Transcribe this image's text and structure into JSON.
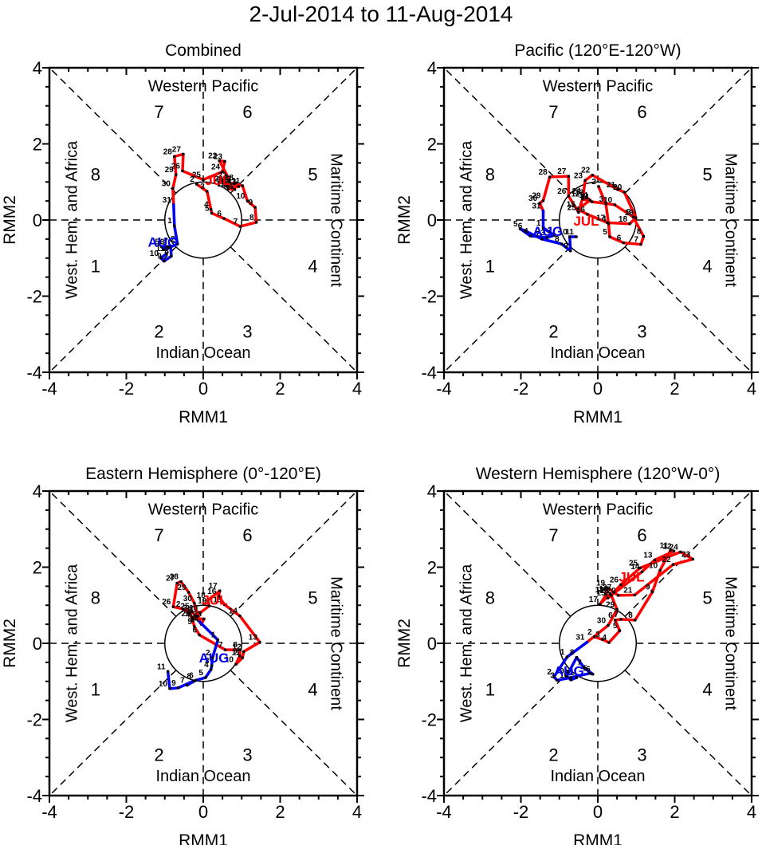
{
  "page_title": "2-Jul-2014 to 11-Aug-2014",
  "colors": {
    "july": "#ff0000",
    "august": "#0000ee",
    "axis": "#000000"
  },
  "phase_space": {
    "xlabel": "RMM1",
    "ylabel": "RMM2",
    "xlim": [
      -4,
      4
    ],
    "ylim": [
      -4,
      4
    ],
    "major_ticks": [
      -4,
      -2,
      0,
      2,
      4
    ],
    "minor_tick_step": 0.5,
    "unit_circle_radius": 1,
    "regions": {
      "top": "Western Pacific",
      "bottom": "Indian Ocean",
      "left": "West. Hem. and Africa",
      "right": "Maritime Continent"
    },
    "phases": [
      [
        "1",
        -2.8,
        -1.2
      ],
      [
        "2",
        -1.15,
        -2.92
      ],
      [
        "3",
        1.15,
        -2.92
      ],
      [
        "4",
        2.85,
        -1.2
      ],
      [
        "5",
        2.85,
        1.2
      ],
      [
        "6",
        1.15,
        2.85
      ],
      [
        "7",
        -1.15,
        2.85
      ],
      [
        "8",
        -2.8,
        1.2
      ]
    ]
  },
  "chart_data": [
    {
      "type": "line",
      "title": "Combined",
      "xlabel": "RMM1",
      "ylabel": "RMM2",
      "xlim": [
        -4,
        4
      ],
      "ylim": [
        -4,
        4
      ],
      "series": [
        {
          "name": "JUL",
          "color_key": "july",
          "label_pos": [
            0.38,
            0.92
          ],
          "days": [
            [
              2,
              -0.17,
              0.94
            ],
            [
              3,
              0.1,
              0.75
            ],
            [
              4,
              0.2,
              0.28
            ],
            [
              5,
              0.22,
              0.18
            ],
            [
              6,
              0.54,
              0.04
            ],
            [
              7,
              0.96,
              -0.17
            ],
            [
              8,
              1.38,
              -0.06
            ],
            [
              9,
              1.35,
              0.33
            ],
            [
              10,
              1.15,
              0.5
            ],
            [
              11,
              1.02,
              0.9
            ],
            [
              12,
              0.8,
              0.95
            ],
            [
              13,
              0.92,
              0.88
            ],
            [
              14,
              0.75,
              0.85
            ],
            [
              15,
              0.65,
              0.82
            ],
            [
              16,
              0.82,
              0.8
            ],
            [
              17,
              0.7,
              0.95
            ],
            [
              18,
              0.85,
              0.98
            ],
            [
              19,
              0.62,
              0.88
            ],
            [
              20,
              0.58,
              0.95
            ],
            [
              21,
              0.68,
              1.05
            ],
            [
              22,
              0.42,
              1.56
            ],
            [
              23,
              0.56,
              1.54
            ],
            [
              24,
              0.5,
              1.27
            ],
            [
              25,
              0.0,
              1.06
            ],
            [
              26,
              -0.54,
              1.29
            ],
            [
              27,
              -0.52,
              1.73
            ],
            [
              28,
              -0.75,
              1.67
            ],
            [
              29,
              -0.71,
              1.19
            ],
            [
              30,
              -0.79,
              0.83
            ],
            [
              31,
              -0.77,
              0.4
            ]
          ]
        },
        {
          "name": "AUG",
          "color_key": "august",
          "label_pos": [
            -1.05,
            -0.7
          ],
          "days": [
            [
              1,
              -0.75,
              -0.15
            ],
            [
              2,
              -0.67,
              -0.63
            ],
            [
              3,
              -0.88,
              -0.72
            ],
            [
              4,
              -1.02,
              -0.78
            ],
            [
              5,
              -1.08,
              -0.7
            ],
            [
              6,
              -0.95,
              -0.7
            ],
            [
              7,
              -0.85,
              -0.68
            ],
            [
              8,
              -0.83,
              -0.95
            ],
            [
              9,
              -1.02,
              -1.08
            ],
            [
              10,
              -1.1,
              -1.0
            ],
            [
              11,
              -0.95,
              -0.88
            ]
          ]
        }
      ]
    },
    {
      "type": "line",
      "title": "Pacific (120°E-120°W)",
      "xlabel": "RMM1",
      "ylabel": "RMM2",
      "xlim": [
        -4,
        4
      ],
      "ylim": [
        -4,
        4
      ],
      "series": [
        {
          "name": "JUL",
          "color_key": "july",
          "label_pos": [
            -0.3,
            -0.15
          ],
          "days": [
            [
              2,
              0.02,
              0.88
            ],
            [
              3,
              0.21,
              0.42
            ],
            [
              4,
              0.28,
              -0.1
            ],
            [
              5,
              0.31,
              -0.44
            ],
            [
              6,
              0.67,
              -0.6
            ],
            [
              7,
              1.12,
              -0.64
            ],
            [
              8,
              1.19,
              -0.43
            ],
            [
              9,
              0.92,
              0.08
            ],
            [
              10,
              0.44,
              0.4
            ],
            [
              11,
              -0.15,
              0.48
            ],
            [
              12,
              -0.4,
              0.55
            ],
            [
              13,
              -0.3,
              0.6
            ],
            [
              14,
              -0.2,
              0.52
            ],
            [
              15,
              -0.52,
              0.28
            ],
            [
              16,
              -0.27,
              0.15
            ],
            [
              17,
              0.25,
              -0.07
            ],
            [
              18,
              0.83,
              -0.1
            ],
            [
              19,
              0.99,
              0.06
            ],
            [
              20,
              0.69,
              0.73
            ],
            [
              21,
              0.52,
              0.8
            ],
            [
              22,
              -0.14,
              1.18
            ],
            [
              23,
              -0.33,
              1.04
            ],
            [
              24,
              -0.38,
              0.63
            ],
            [
              25,
              -0.5,
              0.2
            ],
            [
              26,
              -0.76,
              0.63
            ],
            [
              27,
              -0.76,
              1.15
            ],
            [
              28,
              -1.25,
              1.13
            ],
            [
              29,
              -1.42,
              0.51
            ],
            [
              30,
              -1.51,
              0.44
            ],
            [
              31,
              -1.42,
              0.24
            ]
          ]
        },
        {
          "name": "AUG",
          "color_key": "august",
          "label_pos": [
            -1.3,
            -0.42
          ],
          "days": [
            [
              1,
              -1.42,
              -0.21
            ],
            [
              2,
              -1.13,
              -0.4
            ],
            [
              3,
              -1.31,
              -0.46
            ],
            [
              4,
              -1.75,
              -0.42
            ],
            [
              5,
              -2.02,
              -0.23
            ],
            [
              6,
              -1.9,
              -0.28
            ],
            [
              7,
              -1.45,
              -0.5
            ],
            [
              8,
              -0.94,
              -0.63
            ],
            [
              9,
              -0.71,
              -0.81
            ],
            [
              10,
              -0.73,
              -0.44
            ],
            [
              11,
              -0.56,
              -0.44
            ]
          ]
        }
      ]
    },
    {
      "type": "line",
      "title": "Eastern Hemisphere (0°-120°E)",
      "xlabel": "RMM1",
      "ylabel": "RMM2",
      "xlim": [
        -4,
        4
      ],
      "ylim": [
        -4,
        4
      ],
      "series": [
        {
          "name": "JUL",
          "color_key": "july",
          "label_pos": [
            0.3,
            1.02
          ],
          "days": [
            [
              2,
              -0.53,
              0.9
            ],
            [
              3,
              -0.35,
              0.8
            ],
            [
              4,
              -0.28,
              0.62
            ],
            [
              5,
              -0.23,
              0.44
            ],
            [
              6,
              -0.1,
              0.22
            ],
            [
              7,
              0.57,
              -0.17
            ],
            [
              8,
              0.95,
              -0.17
            ],
            [
              9,
              0.95,
              -0.33
            ],
            [
              10,
              0.85,
              -0.55
            ],
            [
              11,
              1.02,
              -0.38
            ],
            [
              12,
              1.05,
              -0.22
            ],
            [
              13,
              1.47,
              0.03
            ],
            [
              14,
              0.95,
              0.72
            ],
            [
              15,
              0.55,
              1.02
            ],
            [
              16,
              0.4,
              1.24
            ],
            [
              17,
              0.43,
              1.38
            ],
            [
              18,
              0.12,
              1.13
            ],
            [
              19,
              0.15,
              0.98
            ],
            [
              20,
              -0.08,
              0.8
            ],
            [
              21,
              -0.18,
              0.72
            ],
            [
              22,
              -0.28,
              0.65
            ],
            [
              23,
              0.02,
              0.64
            ],
            [
              24,
              -0.05,
              0.5
            ],
            [
              25,
              -0.3,
              0.85
            ],
            [
              26,
              -0.78,
              0.96
            ],
            [
              27,
              -0.68,
              1.58
            ],
            [
              28,
              -0.58,
              1.62
            ],
            [
              29,
              -0.38,
              1.34
            ],
            [
              30,
              -0.23,
              1.05
            ],
            [
              31,
              -0.09,
              0.56
            ]
          ]
        },
        {
          "name": "AUG",
          "color_key": "august",
          "label_pos": [
            0.28,
            -0.5
          ],
          "days": [
            [
              1,
              0.38,
              0.09
            ],
            [
              2,
              0.24,
              -0.38
            ],
            [
              3,
              0.22,
              -0.59
            ],
            [
              4,
              0.2,
              -0.69
            ],
            [
              5,
              0.06,
              -0.9
            ],
            [
              6,
              -0.19,
              -0.97
            ],
            [
              7,
              -0.42,
              -1.1
            ],
            [
              8,
              -0.25,
              -0.99
            ],
            [
              9,
              -0.65,
              -1.17
            ],
            [
              10,
              -0.87,
              -1.19
            ],
            [
              11,
              -0.92,
              -0.74
            ]
          ]
        }
      ]
    },
    {
      "type": "line",
      "title": "Western Hemisphere (120°W-0°)",
      "xlabel": "RMM1",
      "ylabel": "RMM2",
      "xlim": [
        -4,
        4
      ],
      "ylim": [
        -4,
        4
      ],
      "series": [
        {
          "name": "JUL",
          "color_key": "july",
          "label_pos": [
            0.88,
            1.62
          ],
          "days": [
            [
              2,
              -0.09,
              0.17
            ],
            [
              3,
              0.12,
              0.1
            ],
            [
              4,
              0.29,
              0.02
            ],
            [
              5,
              0.57,
              0.33
            ],
            [
              6,
              0.45,
              0.61
            ],
            [
              7,
              0.6,
              0.63
            ],
            [
              8,
              0.97,
              0.61
            ],
            [
              9,
              1.42,
              1.35
            ],
            [
              10,
              1.62,
              1.92
            ],
            [
              11,
              1.89,
              2.44
            ],
            [
              12,
              1.98,
              2.42
            ],
            [
              13,
              1.48,
              2.19
            ],
            [
              14,
              1.15,
              1.88
            ],
            [
              15,
              0.26,
              1.19
            ],
            [
              16,
              0.32,
              1.3
            ],
            [
              17,
              0.06,
              1.03
            ],
            [
              18,
              0.22,
              1.28
            ],
            [
              19,
              0.25,
              1.46
            ],
            [
              20,
              0.53,
              1.26
            ],
            [
              21,
              0.96,
              1.27
            ],
            [
              22,
              1.96,
              2.07
            ],
            [
              23,
              2.47,
              2.21
            ],
            [
              24,
              2.15,
              2.4
            ],
            [
              25,
              1.1,
              1.98
            ],
            [
              26,
              0.6,
              1.54
            ],
            [
              27,
              0.42,
              1.34
            ],
            [
              28,
              0.35,
              1.26
            ],
            [
              29,
              0.5,
              0.89
            ],
            [
              30,
              0.27,
              0.47
            ],
            [
              31,
              -0.28,
              0.03
            ]
          ]
        },
        {
          "name": "AUG",
          "color_key": "august",
          "label_pos": [
            -0.75,
            -0.85
          ],
          "days": [
            [
              1,
              -0.8,
              -0.36
            ],
            [
              2,
              -1.14,
              -0.88
            ],
            [
              3,
              -1.06,
              -0.97
            ],
            [
              4,
              -0.7,
              -0.9
            ],
            [
              5,
              -0.21,
              -0.79
            ],
            [
              6,
              -0.13,
              -0.81
            ],
            [
              7,
              -0.36,
              -0.64
            ],
            [
              8,
              -0.55,
              -0.37
            ],
            [
              9,
              -0.81,
              -0.86
            ],
            [
              10,
              -0.7,
              -0.96
            ],
            [
              11,
              -0.55,
              -0.9
            ]
          ]
        }
      ]
    }
  ]
}
